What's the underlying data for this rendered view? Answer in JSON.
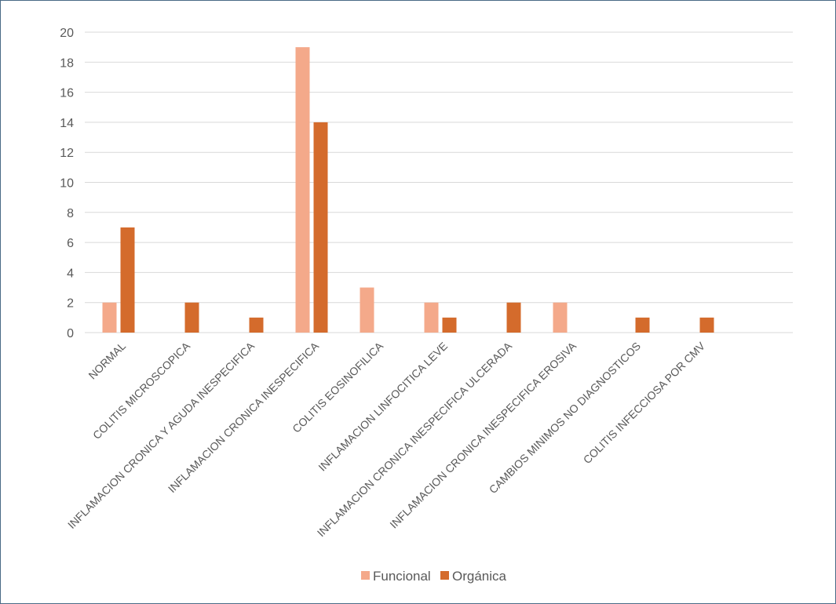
{
  "chart_data": {
    "type": "bar",
    "title": "",
    "xlabel": "",
    "ylabel": "",
    "ylim": [
      0,
      20
    ],
    "yticks": [
      0,
      2,
      4,
      6,
      8,
      10,
      12,
      14,
      16,
      18,
      20
    ],
    "grid": true,
    "legend_position": "bottom",
    "categories": [
      "NORMAL",
      "COLITIS MICROSCOPICA",
      "INFLAMACION CRONICA Y AGUDA INESPECIFICA",
      "INFLAMACION CRONICA INESPECIFICA",
      "COLITIS EOSINOFILICA",
      "INFLAMACION LINFOCITICA LEVE",
      "INFLAMACION CRONICA INESPECIFICA ULCERADA",
      "INFLAMACION CRONICA INESPECIFICA EROSIVA",
      "CAMBIOS MINIMOS NO DIAGNOSTICOS",
      "COLITIS INFECCIOSA POR CMV"
    ],
    "series": [
      {
        "name": "Funcional",
        "color": "#f4a98a",
        "values": [
          2,
          0,
          0,
          19,
          3,
          2,
          0,
          2,
          0,
          0
        ]
      },
      {
        "name": "Orgánica",
        "color": "#d46b2c",
        "values": [
          7,
          2,
          1,
          14,
          0,
          1,
          2,
          0,
          1,
          1
        ]
      }
    ]
  }
}
